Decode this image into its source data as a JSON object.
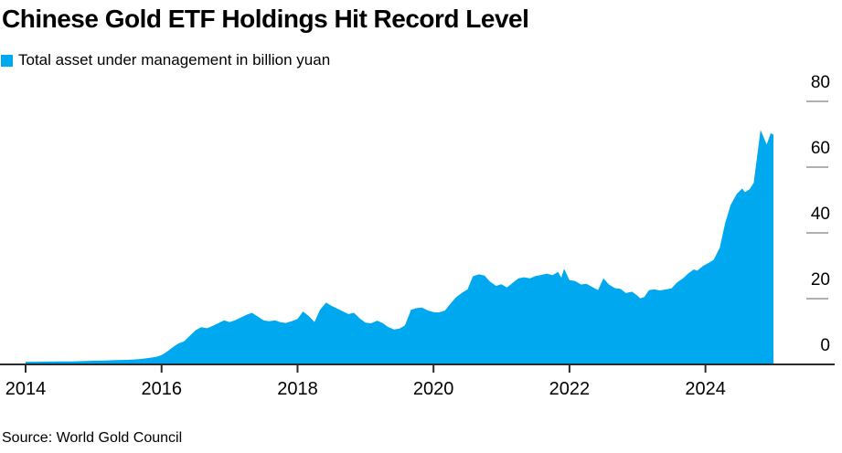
{
  "header": {
    "title": "Chinese Gold ETF Holdings Hit Record Level"
  },
  "legend": {
    "label": "Total asset under management in billion yuan"
  },
  "footer": {
    "source": "Source: World Gold Council"
  },
  "colors": {
    "area": "#00A8F0",
    "axis_line": "#2b2b2b",
    "tick_stub": "#969696",
    "label_text": "#000000"
  },
  "chart_data": {
    "type": "area",
    "title": "Chinese Gold ETF Holdings Hit Record Level",
    "xlabel": "",
    "ylabel": "Total asset under management in billion yuan",
    "legend_position": "top-left",
    "grid": "right-side tick stubs only, black zero baseline",
    "xlim": [
      2014,
      2025
    ],
    "ylim": [
      0,
      80
    ],
    "x_tick_labels": [
      "2014",
      "2016",
      "2018",
      "2020",
      "2022",
      "2024"
    ],
    "x_tick_values": [
      2014,
      2016,
      2018,
      2020,
      2022,
      2024
    ],
    "y_tick_labels": [
      "0",
      "20",
      "40",
      "60",
      "80"
    ],
    "y_tick_values": [
      0,
      20,
      40,
      60,
      80
    ],
    "series": [
      {
        "name": "Total asset under management in billion yuan",
        "color": "#00A8F0",
        "points": [
          [
            2014.0,
            0.8
          ],
          [
            2014.17,
            0.8
          ],
          [
            2014.33,
            0.85
          ],
          [
            2014.5,
            0.9
          ],
          [
            2014.67,
            0.9
          ],
          [
            2014.83,
            1.0
          ],
          [
            2015.0,
            1.1
          ],
          [
            2015.17,
            1.2
          ],
          [
            2015.33,
            1.3
          ],
          [
            2015.5,
            1.4
          ],
          [
            2015.67,
            1.6
          ],
          [
            2015.83,
            2.0
          ],
          [
            2015.92,
            2.3
          ],
          [
            2016.0,
            2.8
          ],
          [
            2016.08,
            3.9
          ],
          [
            2016.17,
            5.3
          ],
          [
            2016.25,
            6.4
          ],
          [
            2016.33,
            7.0
          ],
          [
            2016.42,
            8.8
          ],
          [
            2016.5,
            10.4
          ],
          [
            2016.58,
            11.3
          ],
          [
            2016.67,
            11.0
          ],
          [
            2016.75,
            11.7
          ],
          [
            2016.83,
            12.5
          ],
          [
            2016.92,
            13.4
          ],
          [
            2017.0,
            12.9
          ],
          [
            2017.08,
            13.4
          ],
          [
            2017.17,
            14.3
          ],
          [
            2017.25,
            15.1
          ],
          [
            2017.33,
            15.7
          ],
          [
            2017.42,
            14.5
          ],
          [
            2017.5,
            13.4
          ],
          [
            2017.58,
            13.1
          ],
          [
            2017.67,
            13.4
          ],
          [
            2017.75,
            12.8
          ],
          [
            2017.83,
            12.6
          ],
          [
            2017.92,
            13.2
          ],
          [
            2018.0,
            13.8
          ],
          [
            2018.08,
            16.1
          ],
          [
            2018.17,
            14.6
          ],
          [
            2018.25,
            12.9
          ],
          [
            2018.33,
            16.6
          ],
          [
            2018.42,
            18.8
          ],
          [
            2018.5,
            17.8
          ],
          [
            2018.58,
            17.0
          ],
          [
            2018.67,
            16.1
          ],
          [
            2018.75,
            15.3
          ],
          [
            2018.83,
            15.7
          ],
          [
            2018.92,
            13.9
          ],
          [
            2019.0,
            12.7
          ],
          [
            2019.08,
            12.5
          ],
          [
            2019.17,
            13.3
          ],
          [
            2019.25,
            12.6
          ],
          [
            2019.33,
            11.4
          ],
          [
            2019.42,
            10.6
          ],
          [
            2019.5,
            10.9
          ],
          [
            2019.58,
            11.9
          ],
          [
            2019.67,
            16.6
          ],
          [
            2019.75,
            17.1
          ],
          [
            2019.83,
            17.3
          ],
          [
            2019.92,
            16.4
          ],
          [
            2020.0,
            15.9
          ],
          [
            2020.08,
            15.8
          ],
          [
            2020.17,
            16.4
          ],
          [
            2020.25,
            18.5
          ],
          [
            2020.33,
            20.4
          ],
          [
            2020.42,
            21.8
          ],
          [
            2020.5,
            22.8
          ],
          [
            2020.58,
            26.8
          ],
          [
            2020.67,
            27.4
          ],
          [
            2020.75,
            27.0
          ],
          [
            2020.83,
            25.2
          ],
          [
            2020.92,
            23.9
          ],
          [
            2021.0,
            24.4
          ],
          [
            2021.08,
            23.4
          ],
          [
            2021.17,
            24.9
          ],
          [
            2021.25,
            26.2
          ],
          [
            2021.33,
            26.5
          ],
          [
            2021.42,
            26.2
          ],
          [
            2021.5,
            26.9
          ],
          [
            2021.58,
            27.2
          ],
          [
            2021.67,
            27.6
          ],
          [
            2021.75,
            27.1
          ],
          [
            2021.83,
            28.1
          ],
          [
            2021.88,
            26.4
          ],
          [
            2021.92,
            29.1
          ],
          [
            2022.0,
            25.6
          ],
          [
            2022.08,
            25.4
          ],
          [
            2022.17,
            24.3
          ],
          [
            2022.25,
            24.5
          ],
          [
            2022.33,
            23.6
          ],
          [
            2022.42,
            22.6
          ],
          [
            2022.5,
            26.2
          ],
          [
            2022.58,
            24.3
          ],
          [
            2022.67,
            23.2
          ],
          [
            2022.75,
            23.0
          ],
          [
            2022.83,
            21.7
          ],
          [
            2022.92,
            22.1
          ],
          [
            2023.0,
            20.9
          ],
          [
            2023.04,
            20.1
          ],
          [
            2023.1,
            20.5
          ],
          [
            2023.17,
            22.6
          ],
          [
            2023.25,
            22.8
          ],
          [
            2023.33,
            22.5
          ],
          [
            2023.42,
            22.8
          ],
          [
            2023.5,
            23.1
          ],
          [
            2023.58,
            24.9
          ],
          [
            2023.67,
            26.2
          ],
          [
            2023.75,
            27.7
          ],
          [
            2023.83,
            28.9
          ],
          [
            2023.88,
            28.5
          ],
          [
            2023.96,
            29.9
          ],
          [
            2024.04,
            30.8
          ],
          [
            2024.12,
            31.8
          ],
          [
            2024.21,
            35.5
          ],
          [
            2024.29,
            43.0
          ],
          [
            2024.37,
            48.5
          ],
          [
            2024.46,
            51.8
          ],
          [
            2024.54,
            53.5
          ],
          [
            2024.58,
            52.4
          ],
          [
            2024.65,
            53.3
          ],
          [
            2024.71,
            55.2
          ],
          [
            2024.75,
            61.6
          ],
          [
            2024.81,
            71.3
          ],
          [
            2024.9,
            66.9
          ],
          [
            2024.96,
            70.3
          ],
          [
            2025.0,
            69.9
          ]
        ]
      }
    ]
  }
}
